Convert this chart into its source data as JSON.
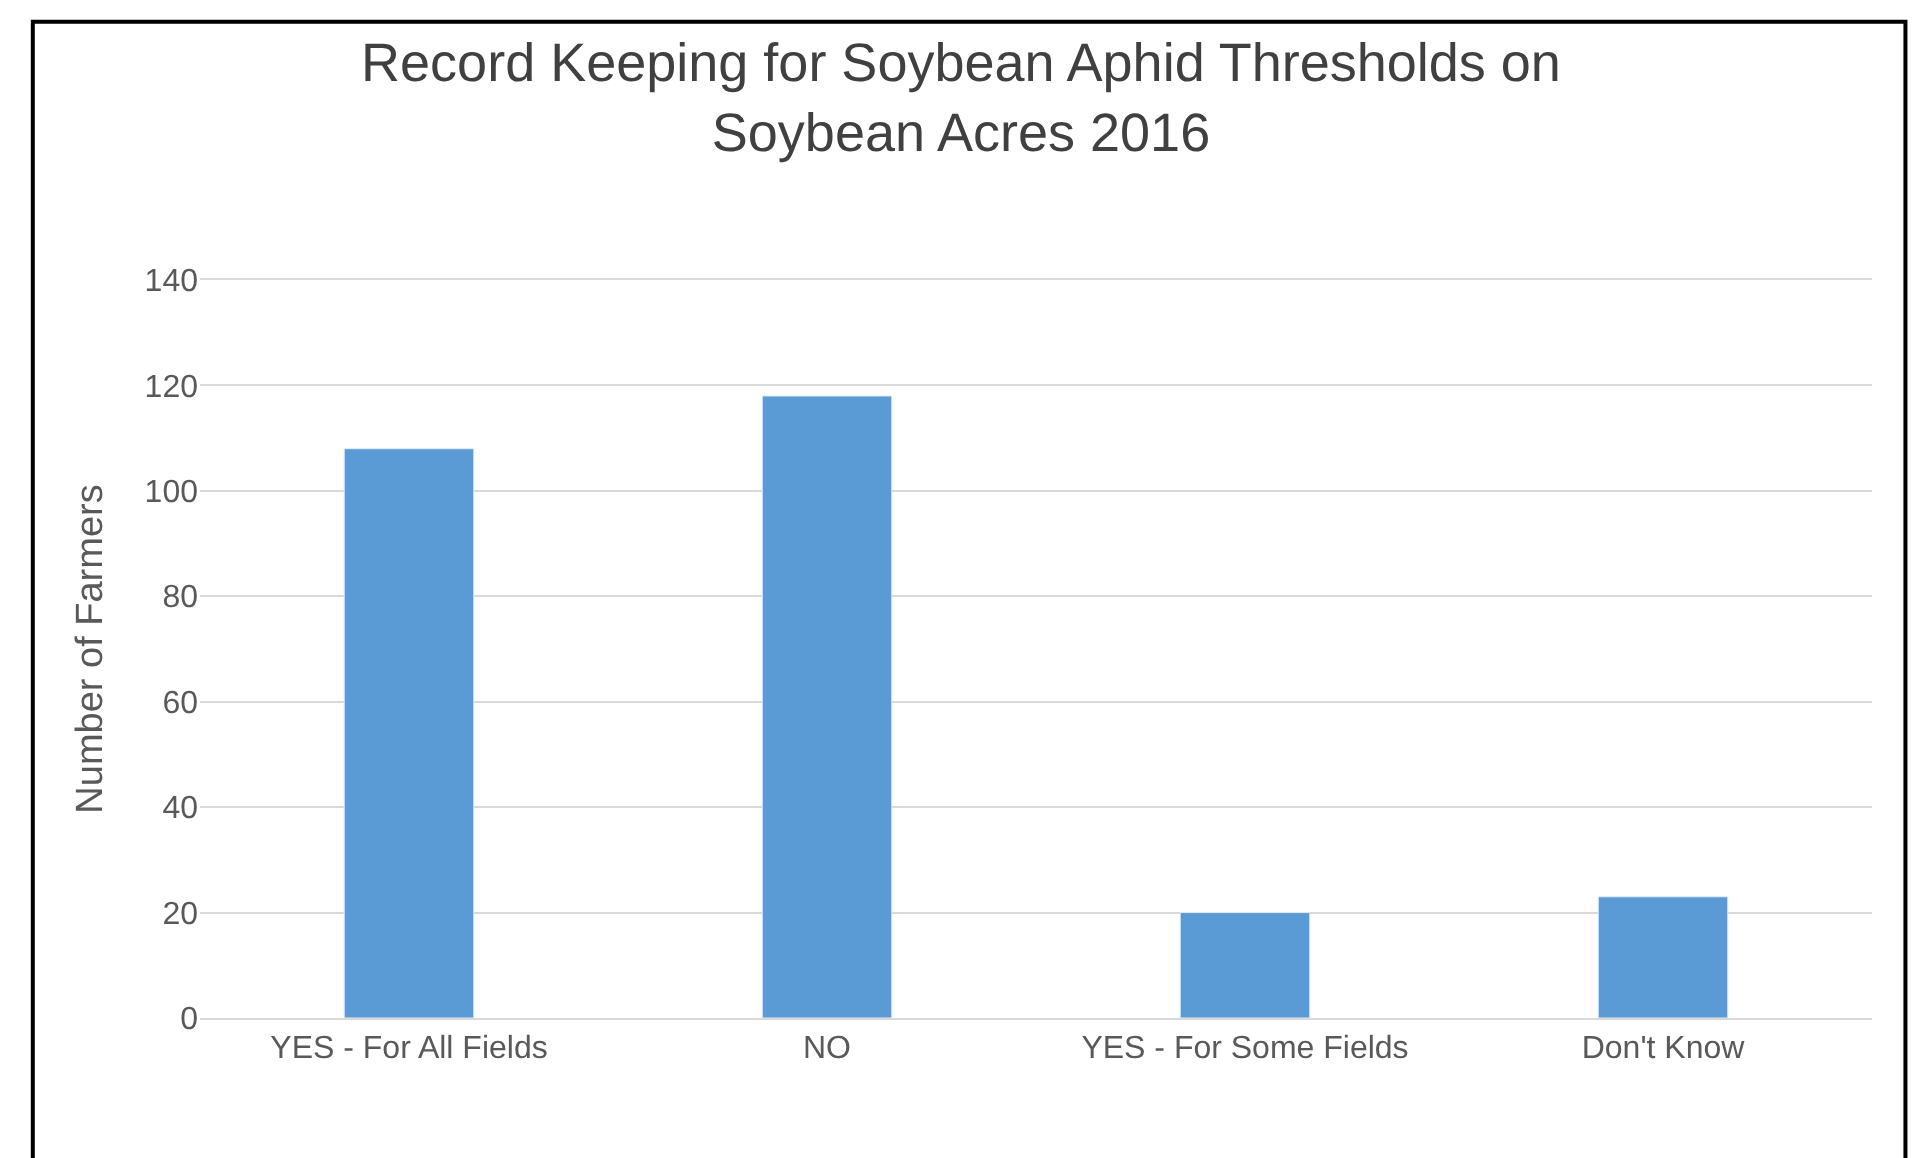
{
  "chart_data": {
    "type": "bar",
    "title": "Record Keeping for Soybean Aphid Thresholds on Soybean Acres 2016",
    "ylabel": "Number of Farmers",
    "categories": [
      "YES - For All Fields",
      "NO",
      "YES - For Some Fields",
      "Don't Know"
    ],
    "values": [
      108,
      118,
      20,
      23
    ],
    "color": "#5b9bd5",
    "ylim": [
      0,
      140
    ],
    "yticks": [
      0,
      20,
      40,
      60,
      80,
      100,
      120,
      140
    ],
    "grid": "y"
  }
}
